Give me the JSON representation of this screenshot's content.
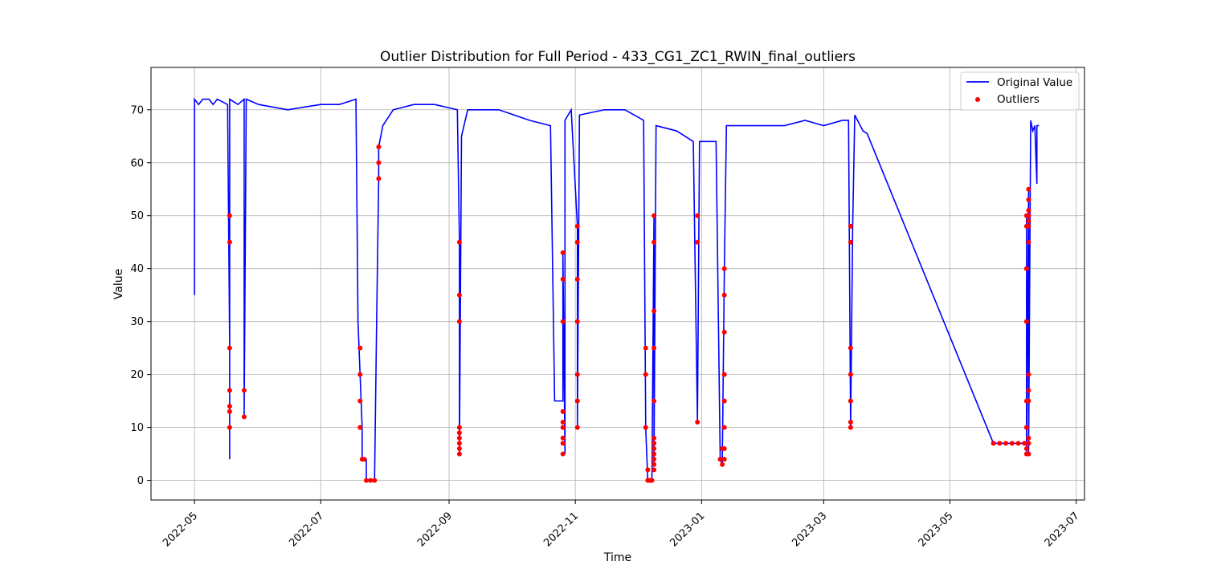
{
  "chart_data": {
    "type": "line",
    "title": "Outlier Distribution for Full Period - 433_CG1_ZC1_RWIN_final_outliers",
    "xlabel": "Time",
    "ylabel": "Value",
    "x_axis_type": "date",
    "xlim": [
      "2022-04-10",
      "2023-07-05"
    ],
    "ylim": [
      -3.7,
      78
    ],
    "grid": true,
    "legend_position": "top-right",
    "x_ticks": [
      "2022-05",
      "2022-07",
      "2022-09",
      "2022-11",
      "2023-01",
      "2023-03",
      "2023-05",
      "2023-07"
    ],
    "y_ticks": [
      0,
      10,
      20,
      30,
      40,
      50,
      60,
      70
    ],
    "colors": {
      "line": "#0000ff",
      "outlier": "#ff0000",
      "grid": "#b0b0b0"
    },
    "series": [
      {
        "name": "Original Value",
        "kind": "line",
        "points": [
          [
            "2022-05-01",
            72
          ],
          [
            "2022-05-01",
            35
          ],
          [
            "2022-05-01",
            72
          ],
          [
            "2022-05-03",
            71
          ],
          [
            "2022-05-05",
            72
          ],
          [
            "2022-05-08",
            72
          ],
          [
            "2022-05-10",
            71
          ],
          [
            "2022-05-12",
            72
          ],
          [
            "2022-05-17",
            71
          ],
          [
            "2022-05-18",
            25
          ],
          [
            "2022-05-18",
            4
          ],
          [
            "2022-05-18",
            72
          ],
          [
            "2022-05-22",
            71
          ],
          [
            "2022-05-25",
            72
          ],
          [
            "2022-05-25",
            17
          ],
          [
            "2022-05-25",
            12
          ],
          [
            "2022-05-26",
            72
          ],
          [
            "2022-06-01",
            71
          ],
          [
            "2022-06-15",
            70
          ],
          [
            "2022-07-01",
            71
          ],
          [
            "2022-07-10",
            71
          ],
          [
            "2022-07-18",
            72
          ],
          [
            "2022-07-19",
            30
          ],
          [
            "2022-07-20",
            20
          ],
          [
            "2022-07-21",
            10
          ],
          [
            "2022-07-21",
            4
          ],
          [
            "2022-07-23",
            4
          ],
          [
            "2022-07-23",
            0
          ],
          [
            "2022-07-27",
            0
          ],
          [
            "2022-07-28",
            30
          ],
          [
            "2022-07-29",
            57
          ],
          [
            "2022-07-29",
            63
          ],
          [
            "2022-07-31",
            67
          ],
          [
            "2022-08-05",
            70
          ],
          [
            "2022-08-15",
            71
          ],
          [
            "2022-08-25",
            71
          ],
          [
            "2022-09-05",
            70
          ],
          [
            "2022-09-06",
            45
          ],
          [
            "2022-09-06",
            5
          ],
          [
            "2022-09-07",
            65
          ],
          [
            "2022-09-10",
            70
          ],
          [
            "2022-09-25",
            70
          ],
          [
            "2022-10-10",
            68
          ],
          [
            "2022-10-20",
            67
          ],
          [
            "2022-10-22",
            15
          ],
          [
            "2022-10-26",
            15
          ],
          [
            "2022-10-26",
            43
          ],
          [
            "2022-10-27",
            5
          ],
          [
            "2022-10-27",
            68
          ],
          [
            "2022-10-30",
            70
          ],
          [
            "2022-11-02",
            48
          ],
          [
            "2022-11-02",
            10
          ],
          [
            "2022-11-03",
            69
          ],
          [
            "2022-11-15",
            70
          ],
          [
            "2022-11-25",
            70
          ],
          [
            "2022-12-04",
            68
          ],
          [
            "2022-12-05",
            10
          ],
          [
            "2022-12-06",
            0
          ],
          [
            "2022-12-08",
            0
          ],
          [
            "2022-12-09",
            50
          ],
          [
            "2022-12-09",
            3
          ],
          [
            "2022-12-10",
            67
          ],
          [
            "2022-12-20",
            66
          ],
          [
            "2022-12-28",
            64
          ],
          [
            "2022-12-30",
            11
          ],
          [
            "2022-12-31",
            64
          ],
          [
            "2023-01-08",
            64
          ],
          [
            "2023-01-10",
            4
          ],
          [
            "2023-01-11",
            3
          ],
          [
            "2023-01-12",
            40
          ],
          [
            "2023-01-13",
            67
          ],
          [
            "2023-01-25",
            67
          ],
          [
            "2023-02-10",
            67
          ],
          [
            "2023-02-20",
            68
          ],
          [
            "2023-03-01",
            67
          ],
          [
            "2023-03-10",
            68
          ],
          [
            "2023-03-13",
            68
          ],
          [
            "2023-03-14",
            10
          ],
          [
            "2023-03-15",
            48
          ],
          [
            "2023-03-16",
            69
          ],
          [
            "2023-03-20",
            66
          ],
          [
            "2023-03-22",
            65.5
          ],
          [
            "2023-05-22",
            7
          ],
          [
            "2023-06-07",
            7
          ],
          [
            "2023-06-07",
            50
          ],
          [
            "2023-06-07",
            5
          ],
          [
            "2023-06-08",
            55
          ],
          [
            "2023-06-08",
            5
          ],
          [
            "2023-06-09",
            68
          ],
          [
            "2023-06-10",
            66
          ],
          [
            "2023-06-11",
            67
          ],
          [
            "2023-06-12",
            56
          ],
          [
            "2023-06-12",
            67
          ],
          [
            "2023-06-13",
            67
          ]
        ]
      },
      {
        "name": "Outliers",
        "kind": "scatter",
        "points": [
          [
            "2022-05-18",
            25
          ],
          [
            "2022-05-18",
            17
          ],
          [
            "2022-05-18",
            14
          ],
          [
            "2022-05-18",
            13
          ],
          [
            "2022-05-18",
            10
          ],
          [
            "2022-05-18",
            45
          ],
          [
            "2022-05-18",
            50
          ],
          [
            "2022-05-25",
            17
          ],
          [
            "2022-05-25",
            12
          ],
          [
            "2022-07-20",
            25
          ],
          [
            "2022-07-20",
            20
          ],
          [
            "2022-07-20",
            15
          ],
          [
            "2022-07-20",
            10
          ],
          [
            "2022-07-21",
            4
          ],
          [
            "2022-07-22",
            4
          ],
          [
            "2022-07-23",
            0
          ],
          [
            "2022-07-25",
            0
          ],
          [
            "2022-07-27",
            0
          ],
          [
            "2022-07-29",
            63
          ],
          [
            "2022-07-29",
            60
          ],
          [
            "2022-07-29",
            57
          ],
          [
            "2022-09-06",
            45
          ],
          [
            "2022-09-06",
            35
          ],
          [
            "2022-09-06",
            30
          ],
          [
            "2022-09-06",
            10
          ],
          [
            "2022-09-06",
            9
          ],
          [
            "2022-09-06",
            8
          ],
          [
            "2022-09-06",
            7
          ],
          [
            "2022-09-06",
            6
          ],
          [
            "2022-09-06",
            5
          ],
          [
            "2022-10-26",
            43
          ],
          [
            "2022-10-26",
            38
          ],
          [
            "2022-10-26",
            30
          ],
          [
            "2022-10-26",
            13
          ],
          [
            "2022-10-26",
            11
          ],
          [
            "2022-10-26",
            10
          ],
          [
            "2022-10-26",
            8
          ],
          [
            "2022-10-26",
            7
          ],
          [
            "2022-10-26",
            5
          ],
          [
            "2022-11-02",
            48
          ],
          [
            "2022-11-02",
            45
          ],
          [
            "2022-11-02",
            38
          ],
          [
            "2022-11-02",
            30
          ],
          [
            "2022-11-02",
            20
          ],
          [
            "2022-11-02",
            15
          ],
          [
            "2022-11-02",
            10
          ],
          [
            "2022-12-05",
            25
          ],
          [
            "2022-12-05",
            20
          ],
          [
            "2022-12-05",
            10
          ],
          [
            "2022-12-06",
            0
          ],
          [
            "2022-12-06",
            2
          ],
          [
            "2022-12-07",
            0
          ],
          [
            "2022-12-08",
            0
          ],
          [
            "2022-12-09",
            50
          ],
          [
            "2022-12-09",
            45
          ],
          [
            "2022-12-09",
            32
          ],
          [
            "2022-12-09",
            25
          ],
          [
            "2022-12-09",
            15
          ],
          [
            "2022-12-09",
            8
          ],
          [
            "2022-12-09",
            7
          ],
          [
            "2022-12-09",
            6
          ],
          [
            "2022-12-09",
            5
          ],
          [
            "2022-12-09",
            4
          ],
          [
            "2022-12-09",
            3
          ],
          [
            "2022-12-09",
            2
          ],
          [
            "2022-12-30",
            50
          ],
          [
            "2022-12-30",
            45
          ],
          [
            "2022-12-30",
            11
          ],
          [
            "2023-01-10",
            4
          ],
          [
            "2023-01-11",
            6
          ],
          [
            "2023-01-11",
            3
          ],
          [
            "2023-01-12",
            40
          ],
          [
            "2023-01-12",
            35
          ],
          [
            "2023-01-12",
            28
          ],
          [
            "2023-01-12",
            20
          ],
          [
            "2023-01-12",
            15
          ],
          [
            "2023-01-12",
            10
          ],
          [
            "2023-01-12",
            6
          ],
          [
            "2023-01-12",
            4
          ],
          [
            "2023-03-14",
            48
          ],
          [
            "2023-03-14",
            45
          ],
          [
            "2023-03-14",
            25
          ],
          [
            "2023-03-14",
            20
          ],
          [
            "2023-03-14",
            15
          ],
          [
            "2023-03-14",
            11
          ],
          [
            "2023-03-14",
            10
          ],
          [
            "2023-05-22",
            7
          ],
          [
            "2023-05-25",
            7
          ],
          [
            "2023-05-28",
            7
          ],
          [
            "2023-05-31",
            7
          ],
          [
            "2023-06-03",
            7
          ],
          [
            "2023-06-06",
            7
          ],
          [
            "2023-06-07",
            50
          ],
          [
            "2023-06-07",
            48
          ],
          [
            "2023-06-07",
            40
          ],
          [
            "2023-06-07",
            30
          ],
          [
            "2023-06-07",
            15
          ],
          [
            "2023-06-07",
            10
          ],
          [
            "2023-06-07",
            6
          ],
          [
            "2023-06-07",
            5
          ],
          [
            "2023-06-08",
            55
          ],
          [
            "2023-06-08",
            53
          ],
          [
            "2023-06-08",
            51
          ],
          [
            "2023-06-08",
            50
          ],
          [
            "2023-06-08",
            49
          ],
          [
            "2023-06-08",
            48
          ],
          [
            "2023-06-08",
            45
          ],
          [
            "2023-06-08",
            20
          ],
          [
            "2023-06-08",
            17
          ],
          [
            "2023-06-08",
            15
          ],
          [
            "2023-06-08",
            8
          ],
          [
            "2023-06-08",
            7
          ],
          [
            "2023-06-08",
            5
          ]
        ]
      }
    ]
  }
}
